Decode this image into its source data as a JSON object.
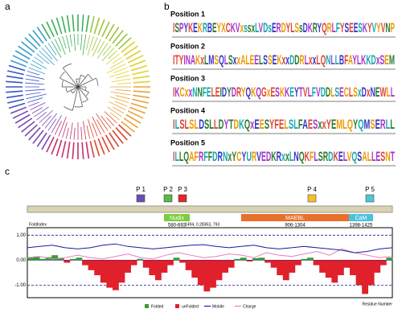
{
  "panels": {
    "a": "a",
    "b": "b",
    "c": "c"
  },
  "logos": [
    {
      "title": "Position 1",
      "sequence": "ISPYKEKRBEYXCKVxssxLVDsERDYLSsDKRYQRLFYSEESKYVYVNP"
    },
    {
      "title": "Position 2",
      "sequence": "ITYINAKxLMSQLSxxALEELSSEKxxDDRLxxLQNLLBFAYLKKDxSEM"
    },
    {
      "title": "Position 3",
      "sequence": "IKCxxNNFELEIDYDRYQKQGxESKKEYTVLFVDDLSECLSxDxNEWLL"
    },
    {
      "title": "Position 4",
      "sequence": "ILSLSLDSLLDYTDKQxEESYFELSLFAESxxYEMLQYQMSERLL"
    },
    {
      "title": "Position 5",
      "sequence": "ILLQAFRFFDRNxYCYURVEDKRxxLNQKFLSRDKELVQSALLESNT"
    }
  ],
  "motifs": [
    "P 1",
    "P 2",
    "P 3",
    "P 4",
    "P 5"
  ],
  "domains": [
    {
      "name": "Nudix",
      "range": "580-693"
    },
    {
      "name": "MAEBL",
      "range": "906-1304"
    },
    {
      "name": "CaM",
      "range": "1398-1425"
    }
  ],
  "plot": {
    "y_label": "FoldIndex",
    "x_label": "Residue Number",
    "cursor": "1494, 0.28363, 793",
    "xlim": [
      0,
      1500
    ],
    "ylim": [
      -1.5,
      1.3
    ],
    "yticks": [
      {
        "value": 1,
        "label": "1.00"
      },
      {
        "value": 0,
        "label": "0.00"
      },
      {
        "value": -1,
        "label": "-1.00"
      }
    ],
    "legend": [
      "Folded",
      "unFolded",
      "Mobile",
      "Charge"
    ],
    "foldindex": [
      0.1,
      0.15,
      0.05,
      0.12,
      0.2,
      0.08,
      -0.1,
      0.05,
      0.1,
      -0.2,
      -0.4,
      -0.6,
      -0.9,
      -1.1,
      -1.2,
      -0.9,
      -0.5,
      -0.2,
      0.05,
      -0.3,
      -0.6,
      -0.8,
      -0.5,
      -0.2,
      0.1,
      -0.1,
      -0.4,
      -0.7,
      -1.0,
      -1.25,
      -1.1,
      -0.8,
      -0.5,
      -0.3,
      0.05,
      0.1,
      -0.05,
      0.08,
      0.1,
      -0.1,
      -0.3,
      -0.6,
      -0.8,
      -0.5,
      -0.2,
      0.05,
      0.1,
      -0.2,
      -0.5,
      -0.7,
      -0.9,
      -0.6,
      -0.3,
      -0.6,
      -1.0,
      -1.35,
      -1.0,
      -0.5,
      -0.2,
      0.1
    ],
    "mobile": [
      0.5,
      0.55,
      0.6,
      0.5,
      0.45,
      0.5,
      0.6,
      0.65,
      0.55,
      0.5,
      0.45,
      0.5,
      0.55,
      0.6,
      0.62,
      0.55,
      0.5,
      0.55,
      0.6,
      0.5,
      0.45,
      0.5,
      0.55,
      0.5,
      0.45,
      0.4,
      0.3,
      0.35,
      0.45,
      0.5
    ],
    "charge": [
      0.1,
      0.15,
      0.05,
      0.1,
      0.2,
      0.1,
      0.05,
      0.15,
      0.25,
      0.1,
      0.05,
      0.2,
      0.3,
      0.2,
      0.1,
      0.15,
      0.25,
      0.2,
      0.1,
      0.3,
      0.2,
      0.15,
      0.25,
      0.35,
      0.2,
      0.45,
      0.3,
      0.2,
      0.1,
      0.15
    ]
  }
}
